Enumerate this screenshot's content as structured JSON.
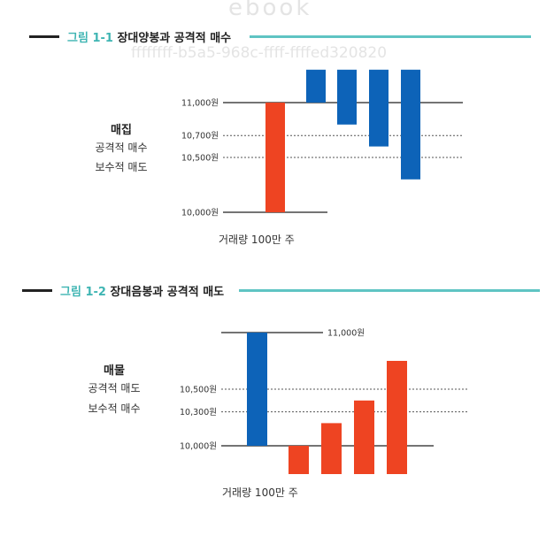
{
  "watermarks": {
    "top": "ebook",
    "id": "ffffffff-b5a5-968c-ffff-ffffed320820"
  },
  "colors": {
    "accent": "#5fc4c3",
    "red": "#ee4422",
    "blue": "#0d63b8"
  },
  "figure1": {
    "number": "그림 1-1",
    "title": "장대양봉과 공격적 매수",
    "side": {
      "heading": "매집",
      "line1": "공격적 매수",
      "line2": "보수적 매도"
    },
    "price_labels": [
      "11,000원",
      "10,700원",
      "10,500원",
      "10,000원"
    ],
    "volume_label": "거래량 100만 주",
    "chart_data": {
      "type": "bar",
      "ylim": [
        10000,
        11000
      ],
      "reference_lines": [
        {
          "value": 11000,
          "style": "solid"
        },
        {
          "value": 10700,
          "style": "dotted"
        },
        {
          "value": 10500,
          "style": "dotted"
        },
        {
          "value": 10000,
          "style": "solid"
        }
      ],
      "bars": [
        {
          "color": "red",
          "from": 10000,
          "to": 11000
        },
        {
          "color": "blue",
          "from": 11000,
          "to": 11300
        },
        {
          "color": "blue",
          "from": 10800,
          "to": 11300
        },
        {
          "color": "blue",
          "from": 10600,
          "to": 11300
        },
        {
          "color": "blue",
          "from": 10300,
          "to": 11300
        }
      ]
    }
  },
  "figure2": {
    "number": "그림 1-2",
    "title": "장대음봉과 공격적 매도",
    "side": {
      "heading": "매물",
      "line1": "공격적 매도",
      "line2": "보수적 매수"
    },
    "price_labels": [
      "11,000원",
      "10,500원",
      "10,300원",
      "10,000원"
    ],
    "volume_label": "거래량 100만 주",
    "chart_data": {
      "type": "bar",
      "ylim": [
        10000,
        11000
      ],
      "reference_lines": [
        {
          "value": 11000,
          "style": "solid"
        },
        {
          "value": 10500,
          "style": "dotted"
        },
        {
          "value": 10300,
          "style": "dotted"
        },
        {
          "value": 10000,
          "style": "solid"
        }
      ],
      "bars": [
        {
          "color": "blue",
          "from": 10000,
          "to": 11000
        },
        {
          "color": "red",
          "from": 9750,
          "to": 10000
        },
        {
          "color": "red",
          "from": 9750,
          "to": 10200
        },
        {
          "color": "red",
          "from": 9750,
          "to": 10400
        },
        {
          "color": "red",
          "from": 9750,
          "to": 10750
        }
      ]
    }
  }
}
